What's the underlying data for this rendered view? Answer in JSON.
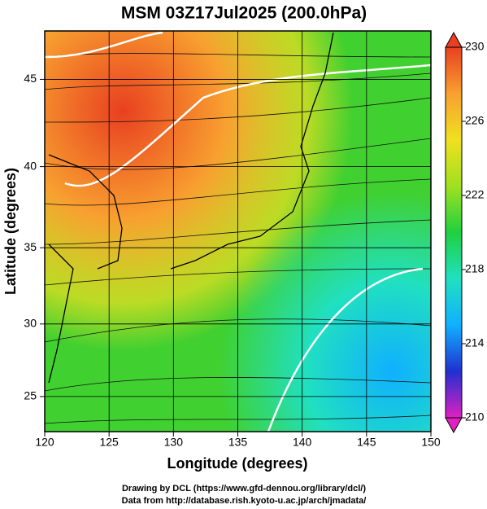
{
  "chart_data": {
    "type": "map",
    "projection": "mercator",
    "title": "MSM 03Z17Jul2025 (200.0hPa)",
    "xlabel": "Longitude (degrees)",
    "ylabel": "Latitude  (degrees)",
    "xlim": [
      120,
      150
    ],
    "xticks": [
      120,
      125,
      130,
      135,
      140,
      145,
      150
    ],
    "ylim": [
      22.5,
      47.6
    ],
    "yticks": [
      25,
      30,
      35,
      40,
      45
    ],
    "grid": true,
    "colorbar": {
      "lim": [
        210,
        230
      ],
      "ticks": [
        210,
        214,
        218,
        222,
        226,
        230
      ],
      "colors": [
        "#e020c0",
        "#2030d0",
        "#10b0ff",
        "#20e0c0",
        "#20d040",
        "#a0e020",
        "#f0e020",
        "#f8a030",
        "#e84020"
      ]
    },
    "footer": [
      "Drawing by DCL (https://www.gfd-dennou.org/library/dcl/)",
      "Data from http://database.rish.kyoto-u.ac.jp/arch/jmadata/"
    ]
  }
}
